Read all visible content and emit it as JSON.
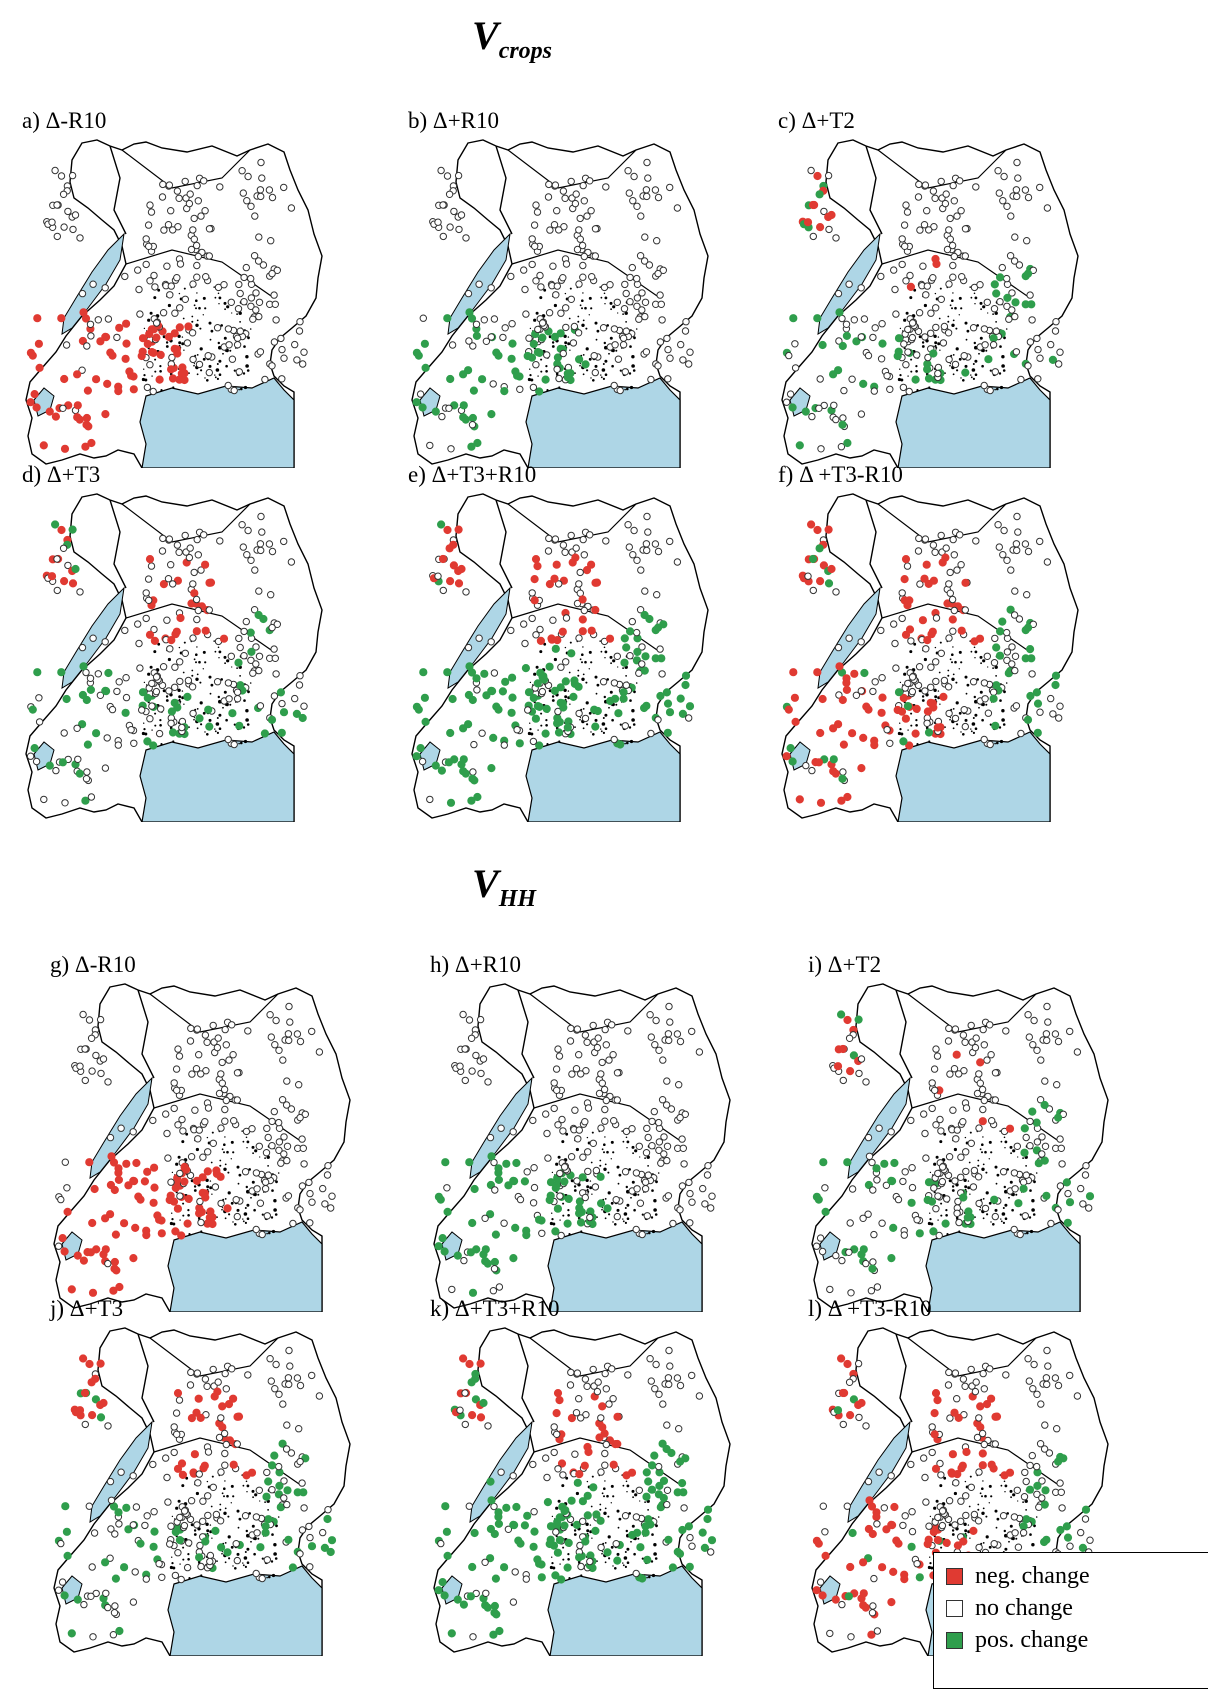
{
  "sections": [
    {
      "title_main": "V",
      "title_sub": "crops"
    },
    {
      "title_main": "V",
      "title_sub": "HH"
    }
  ],
  "panels": [
    {
      "label": "a) Δ-R10",
      "pattern": "SW_NEG"
    },
    {
      "label": "b) Δ+R10",
      "pattern": "SW_POS"
    },
    {
      "label": "c) Δ+T2",
      "pattern": "T2"
    },
    {
      "label": "d) Δ+T3",
      "pattern": "T3"
    },
    {
      "label": "e) Δ+T3+R10",
      "pattern": "T3R"
    },
    {
      "label": "f) Δ +T3-R10",
      "pattern": "T3M"
    },
    {
      "label": "g) Δ-R10",
      "pattern": "SW_NEG"
    },
    {
      "label": "h) Δ+R10",
      "pattern": "SW_POS"
    },
    {
      "label": "i) Δ+T2",
      "pattern": "T2"
    },
    {
      "label": "j) Δ+T3",
      "pattern": "T3"
    },
    {
      "label": "k) Δ+T3+R10",
      "pattern": "T3R"
    },
    {
      "label": "l) Δ +T3-R10",
      "pattern": "T3M"
    }
  ],
  "legend": {
    "items": [
      {
        "label": "neg. change",
        "color": "#e03a32"
      },
      {
        "label": "no change",
        "color": "#ffffff"
      },
      {
        "label": "pos. change",
        "color": "#2f9e4c"
      }
    ]
  },
  "colors": {
    "water": "#aed6e6",
    "neg": "#e03a32",
    "pos": "#2f9e4c",
    "none": "#ffffff",
    "outline": "#000000"
  }
}
